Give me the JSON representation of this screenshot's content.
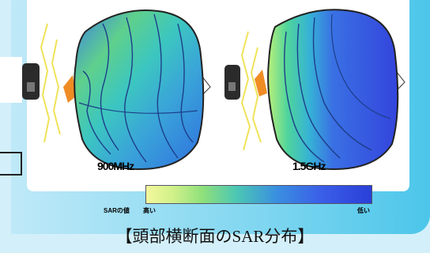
{
  "figures": [
    {
      "label": "900MHz"
    },
    {
      "label": "1.5GHz"
    }
  ],
  "colorbar": {
    "title": "SARの値",
    "high_label": "高い",
    "low_label": "低い",
    "colors": [
      "#f4f89c",
      "#d0f08a",
      "#8fe07a",
      "#4cc7b4",
      "#3a8fe0",
      "#3a5ee8",
      "#2a3fd8"
    ]
  },
  "caption": "【頭部横断面のSAR分布】"
}
